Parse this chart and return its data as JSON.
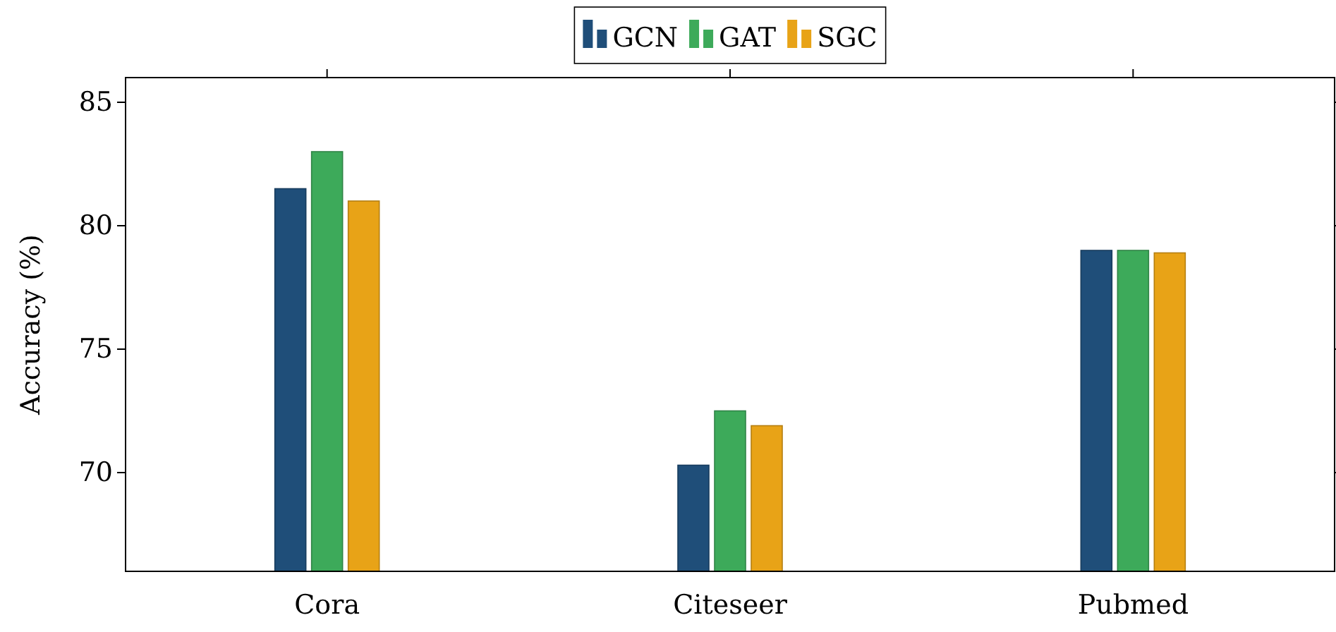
{
  "chart_data": {
    "type": "bar",
    "ylabel": "Accuracy (%)",
    "categories": [
      "Cora",
      "Citeseer",
      "Pubmed"
    ],
    "series": [
      {
        "name": "GCN",
        "color": "#1f4e79",
        "values": [
          81.5,
          70.3,
          79.0
        ]
      },
      {
        "name": "GAT",
        "color": "#3daa5a",
        "values": [
          83.0,
          72.5,
          79.0
        ]
      },
      {
        "name": "SGC",
        "color": "#e8a317",
        "values": [
          81.0,
          71.9,
          78.9
        ]
      }
    ],
    "ylim": [
      66,
      86
    ],
    "yticks": [
      70,
      75,
      80,
      85
    ],
    "grid": false,
    "legend": "top"
  }
}
